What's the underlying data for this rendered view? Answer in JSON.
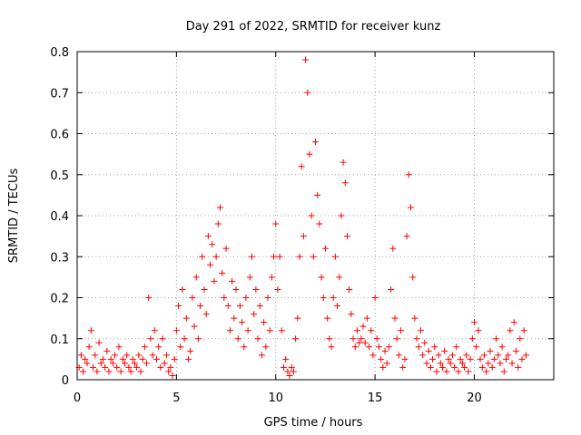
{
  "chart_data": {
    "type": "scatter",
    "title": "Day 291 of 2022, SRMTID for receiver kunz",
    "xlabel": "GPS time / hours",
    "ylabel": "SRMTID / TECUs",
    "xlim": [
      0,
      24
    ],
    "ylim": [
      0,
      0.8
    ],
    "xticks": [
      0,
      5,
      10,
      15,
      20
    ],
    "xtick_labels": [
      "0",
      "5",
      "10",
      "15",
      "20"
    ],
    "yticks": [
      0,
      0.1,
      0.2,
      0.3,
      0.4,
      0.5,
      0.6,
      0.7,
      0.8
    ],
    "ytick_labels": [
      "0",
      "0.1",
      "0.2",
      "0.3",
      "0.4",
      "0.5",
      "0.6",
      "0.7",
      "0.8"
    ],
    "grid": true,
    "marker": "+",
    "color": "#ff0000",
    "series": [
      {
        "name": "SRMTID",
        "points": [
          [
            0.1,
            0.03
          ],
          [
            0.2,
            0.06
          ],
          [
            0.3,
            0.02
          ],
          [
            0.4,
            0.05
          ],
          [
            0.5,
            0.04
          ],
          [
            0.6,
            0.08
          ],
          [
            0.7,
            0.12
          ],
          [
            0.8,
            0.03
          ],
          [
            0.9,
            0.06
          ],
          [
            1.0,
            0.02
          ],
          [
            1.1,
            0.09
          ],
          [
            1.2,
            0.04
          ],
          [
            1.3,
            0.05
          ],
          [
            1.4,
            0.03
          ],
          [
            1.5,
            0.07
          ],
          [
            1.6,
            0.02
          ],
          [
            1.7,
            0.05
          ],
          [
            1.8,
            0.04
          ],
          [
            1.9,
            0.06
          ],
          [
            2.0,
            0.03
          ],
          [
            2.1,
            0.08
          ],
          [
            2.2,
            0.02
          ],
          [
            2.3,
            0.05
          ],
          [
            2.4,
            0.04
          ],
          [
            2.5,
            0.06
          ],
          [
            2.6,
            0.03
          ],
          [
            2.7,
            0.02
          ],
          [
            2.8,
            0.05
          ],
          [
            2.9,
            0.04
          ],
          [
            3.0,
            0.03
          ],
          [
            3.1,
            0.06
          ],
          [
            3.2,
            0.02
          ],
          [
            3.3,
            0.05
          ],
          [
            3.4,
            0.08
          ],
          [
            3.5,
            0.04
          ],
          [
            3.6,
            0.2
          ],
          [
            3.7,
            0.1
          ],
          [
            3.8,
            0.06
          ],
          [
            3.9,
            0.12
          ],
          [
            4.0,
            0.05
          ],
          [
            4.1,
            0.08
          ],
          [
            4.2,
            0.03
          ],
          [
            4.3,
            0.1
          ],
          [
            4.4,
            0.04
          ],
          [
            4.5,
            0.06
          ],
          [
            4.6,
            0.02
          ],
          [
            4.7,
            0.03
          ],
          [
            4.8,
            0.01
          ],
          [
            4.9,
            0.05
          ],
          [
            5.0,
            0.12
          ],
          [
            5.1,
            0.18
          ],
          [
            5.2,
            0.08
          ],
          [
            5.3,
            0.22
          ],
          [
            5.4,
            0.1
          ],
          [
            5.5,
            0.15
          ],
          [
            5.6,
            0.05
          ],
          [
            5.7,
            0.07
          ],
          [
            5.8,
            0.2
          ],
          [
            5.9,
            0.13
          ],
          [
            6.0,
            0.25
          ],
          [
            6.1,
            0.1
          ],
          [
            6.2,
            0.18
          ],
          [
            6.3,
            0.3
          ],
          [
            6.4,
            0.22
          ],
          [
            6.5,
            0.16
          ],
          [
            6.6,
            0.35
          ],
          [
            6.7,
            0.28
          ],
          [
            6.8,
            0.33
          ],
          [
            6.9,
            0.24
          ],
          [
            7.0,
            0.3
          ],
          [
            7.1,
            0.38
          ],
          [
            7.2,
            0.42
          ],
          [
            7.3,
            0.26
          ],
          [
            7.4,
            0.2
          ],
          [
            7.5,
            0.32
          ],
          [
            7.6,
            0.18
          ],
          [
            7.7,
            0.12
          ],
          [
            7.8,
            0.24
          ],
          [
            7.9,
            0.15
          ],
          [
            8.0,
            0.22
          ],
          [
            8.1,
            0.1
          ],
          [
            8.2,
            0.18
          ],
          [
            8.3,
            0.14
          ],
          [
            8.4,
            0.08
          ],
          [
            8.5,
            0.2
          ],
          [
            8.6,
            0.12
          ],
          [
            8.7,
            0.25
          ],
          [
            8.8,
            0.3
          ],
          [
            8.9,
            0.16
          ],
          [
            9.0,
            0.22
          ],
          [
            9.1,
            0.1
          ],
          [
            9.2,
            0.18
          ],
          [
            9.3,
            0.06
          ],
          [
            9.4,
            0.14
          ],
          [
            9.5,
            0.08
          ],
          [
            9.6,
            0.2
          ],
          [
            9.7,
            0.12
          ],
          [
            9.8,
            0.25
          ],
          [
            9.9,
            0.3
          ],
          [
            10.0,
            0.38
          ],
          [
            10.1,
            0.22
          ],
          [
            10.2,
            0.3
          ],
          [
            10.3,
            0.12
          ],
          [
            10.4,
            0.03
          ],
          [
            10.5,
            0.05
          ],
          [
            10.6,
            0.02
          ],
          [
            10.7,
            0.01
          ],
          [
            10.8,
            0.03
          ],
          [
            10.9,
            0.02
          ],
          [
            11.0,
            0.1
          ],
          [
            11.1,
            0.15
          ],
          [
            11.2,
            0.3
          ],
          [
            11.3,
            0.52
          ],
          [
            11.4,
            0.35
          ],
          [
            11.5,
            0.78
          ],
          [
            11.6,
            0.7
          ],
          [
            11.7,
            0.55
          ],
          [
            11.8,
            0.4
          ],
          [
            11.9,
            0.3
          ],
          [
            12.0,
            0.58
          ],
          [
            12.1,
            0.45
          ],
          [
            12.2,
            0.38
          ],
          [
            12.3,
            0.25
          ],
          [
            12.4,
            0.2
          ],
          [
            12.5,
            0.32
          ],
          [
            12.6,
            0.15
          ],
          [
            12.7,
            0.1
          ],
          [
            12.8,
            0.08
          ],
          [
            12.9,
            0.2
          ],
          [
            13.0,
            0.3
          ],
          [
            13.1,
            0.18
          ],
          [
            13.2,
            0.25
          ],
          [
            13.3,
            0.4
          ],
          [
            13.4,
            0.53
          ],
          [
            13.5,
            0.48
          ],
          [
            13.6,
            0.35
          ],
          [
            13.7,
            0.22
          ],
          [
            13.8,
            0.16
          ],
          [
            13.9,
            0.1
          ],
          [
            14.0,
            0.08
          ],
          [
            14.1,
            0.12
          ],
          [
            14.2,
            0.09
          ],
          [
            14.3,
            0.1
          ],
          [
            14.4,
            0.13
          ],
          [
            14.5,
            0.09
          ],
          [
            14.6,
            0.15
          ],
          [
            14.7,
            0.08
          ],
          [
            14.8,
            0.12
          ],
          [
            14.9,
            0.06
          ],
          [
            15.0,
            0.2
          ],
          [
            15.1,
            0.1
          ],
          [
            15.2,
            0.08
          ],
          [
            15.3,
            0.05
          ],
          [
            15.4,
            0.03
          ],
          [
            15.5,
            0.07
          ],
          [
            15.6,
            0.04
          ],
          [
            15.7,
            0.08
          ],
          [
            15.8,
            0.22
          ],
          [
            15.9,
            0.32
          ],
          [
            16.0,
            0.15
          ],
          [
            16.1,
            0.1
          ],
          [
            16.2,
            0.06
          ],
          [
            16.3,
            0.12
          ],
          [
            16.4,
            0.03
          ],
          [
            16.5,
            0.05
          ],
          [
            16.6,
            0.35
          ],
          [
            16.7,
            0.5
          ],
          [
            16.8,
            0.42
          ],
          [
            16.9,
            0.25
          ],
          [
            17.0,
            0.15
          ],
          [
            17.1,
            0.1
          ],
          [
            17.2,
            0.08
          ],
          [
            17.3,
            0.12
          ],
          [
            17.4,
            0.06
          ],
          [
            17.5,
            0.09
          ],
          [
            17.6,
            0.04
          ],
          [
            17.7,
            0.07
          ],
          [
            17.8,
            0.03
          ],
          [
            17.9,
            0.05
          ],
          [
            18.0,
            0.08
          ],
          [
            18.1,
            0.02
          ],
          [
            18.2,
            0.06
          ],
          [
            18.3,
            0.04
          ],
          [
            18.4,
            0.03
          ],
          [
            18.5,
            0.07
          ],
          [
            18.6,
            0.02
          ],
          [
            18.7,
            0.05
          ],
          [
            18.8,
            0.04
          ],
          [
            18.9,
            0.06
          ],
          [
            19.0,
            0.03
          ],
          [
            19.1,
            0.08
          ],
          [
            19.2,
            0.02
          ],
          [
            19.3,
            0.05
          ],
          [
            19.4,
            0.04
          ],
          [
            19.5,
            0.03
          ],
          [
            19.6,
            0.06
          ],
          [
            19.7,
            0.02
          ],
          [
            19.8,
            0.05
          ],
          [
            19.9,
            0.1
          ],
          [
            20.0,
            0.14
          ],
          [
            20.1,
            0.08
          ],
          [
            20.2,
            0.12
          ],
          [
            20.3,
            0.05
          ],
          [
            20.4,
            0.03
          ],
          [
            20.5,
            0.06
          ],
          [
            20.6,
            0.02
          ],
          [
            20.7,
            0.04
          ],
          [
            20.8,
            0.07
          ],
          [
            20.9,
            0.03
          ],
          [
            21.0,
            0.05
          ],
          [
            21.1,
            0.1
          ],
          [
            21.2,
            0.06
          ],
          [
            21.3,
            0.04
          ],
          [
            21.4,
            0.08
          ],
          [
            21.5,
            0.02
          ],
          [
            21.6,
            0.05
          ],
          [
            21.7,
            0.06
          ],
          [
            21.8,
            0.12
          ],
          [
            21.9,
            0.04
          ],
          [
            22.0,
            0.14
          ],
          [
            22.1,
            0.07
          ],
          [
            22.2,
            0.03
          ],
          [
            22.3,
            0.1
          ],
          [
            22.4,
            0.05
          ],
          [
            22.5,
            0.12
          ],
          [
            22.6,
            0.06
          ]
        ]
      }
    ]
  }
}
